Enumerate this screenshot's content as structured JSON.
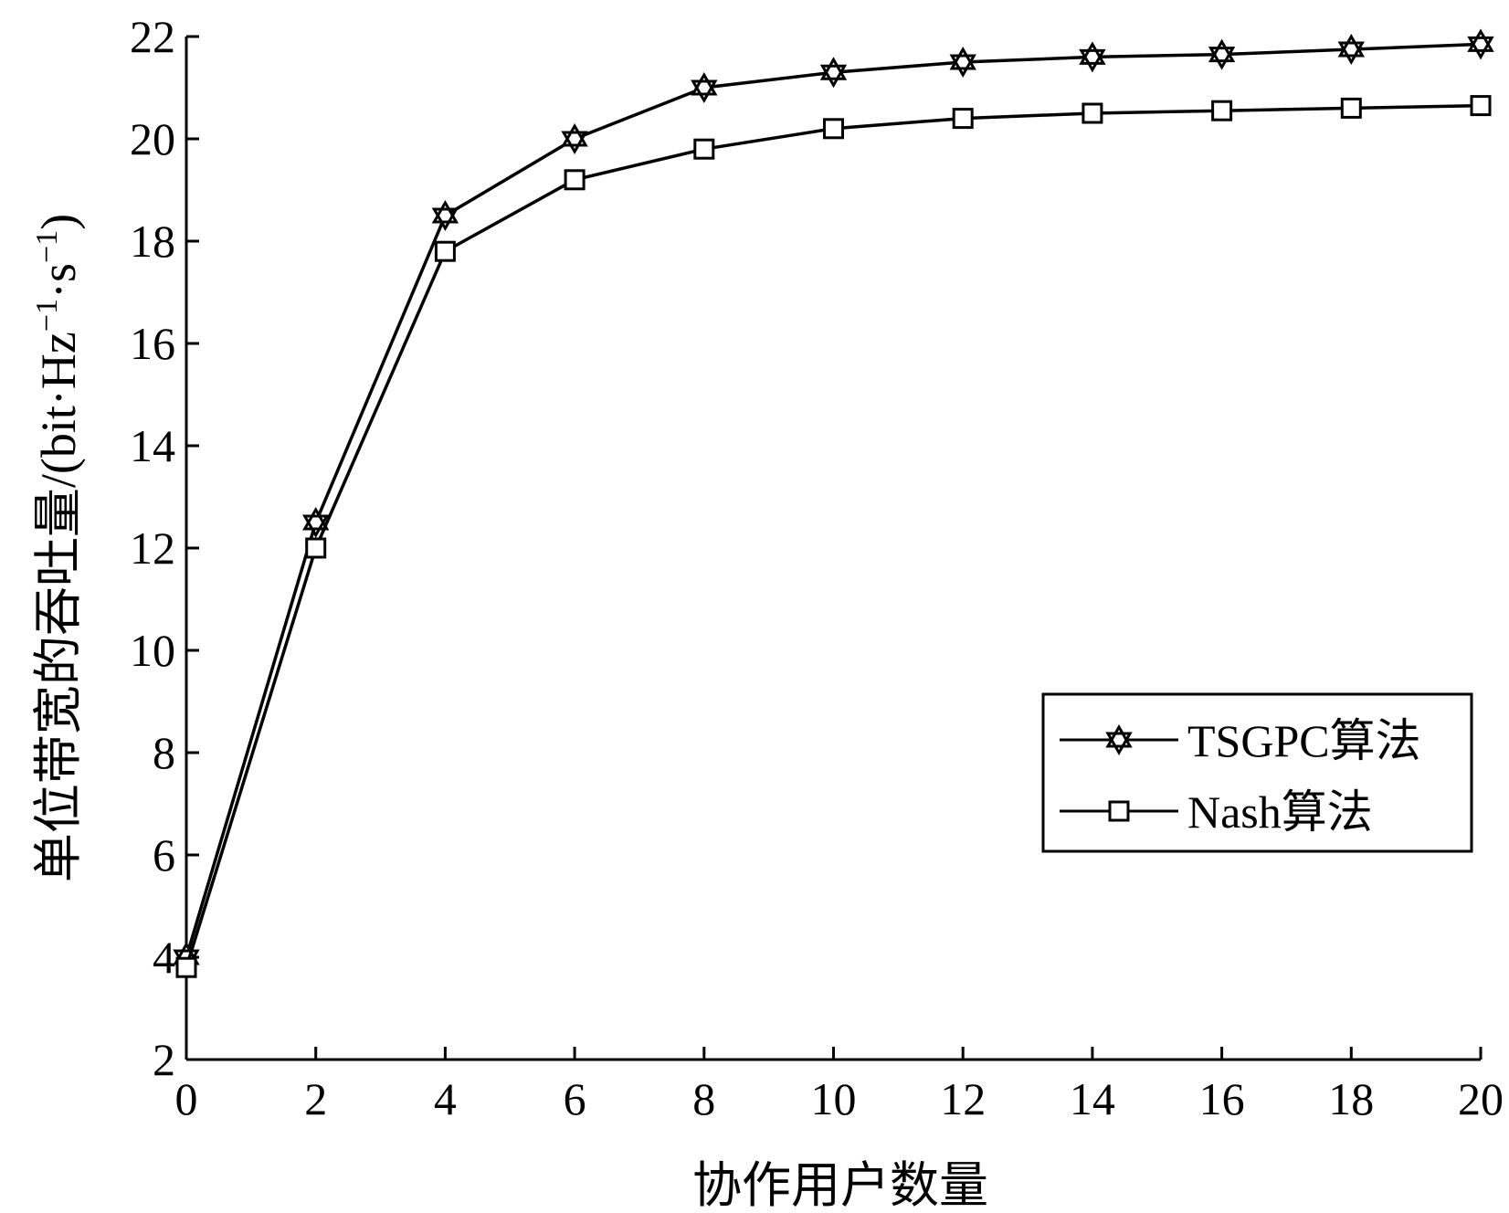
{
  "chart_data": {
    "type": "line",
    "title": "",
    "xlabel": "协作用户数量",
    "ylabel_main": "单位带宽的吞吐量/(bit·Hz",
    "ylabel_sup1": "−1",
    "ylabel_mid": "·s",
    "ylabel_sup2": "−1",
    "ylabel_end": ")",
    "x": [
      0,
      2,
      4,
      6,
      8,
      10,
      12,
      14,
      16,
      18,
      20
    ],
    "xlim": [
      0,
      20
    ],
    "ylim": [
      2,
      22
    ],
    "xticks": [
      0,
      2,
      4,
      6,
      8,
      10,
      12,
      14,
      16,
      18,
      20
    ],
    "yticks": [
      2,
      4,
      6,
      8,
      10,
      12,
      14,
      16,
      18,
      20,
      22
    ],
    "grid": false,
    "legend_position": "center-right",
    "series": [
      {
        "name": "TSGPC算法",
        "marker": "star",
        "values": [
          4.0,
          12.5,
          18.5,
          20.0,
          21.0,
          21.3,
          21.5,
          21.6,
          21.65,
          21.75,
          21.85
        ]
      },
      {
        "name": "Nash算法",
        "marker": "square",
        "values": [
          3.8,
          12.0,
          17.8,
          19.2,
          19.8,
          20.2,
          20.4,
          20.5,
          20.55,
          20.6,
          20.65
        ]
      }
    ]
  }
}
